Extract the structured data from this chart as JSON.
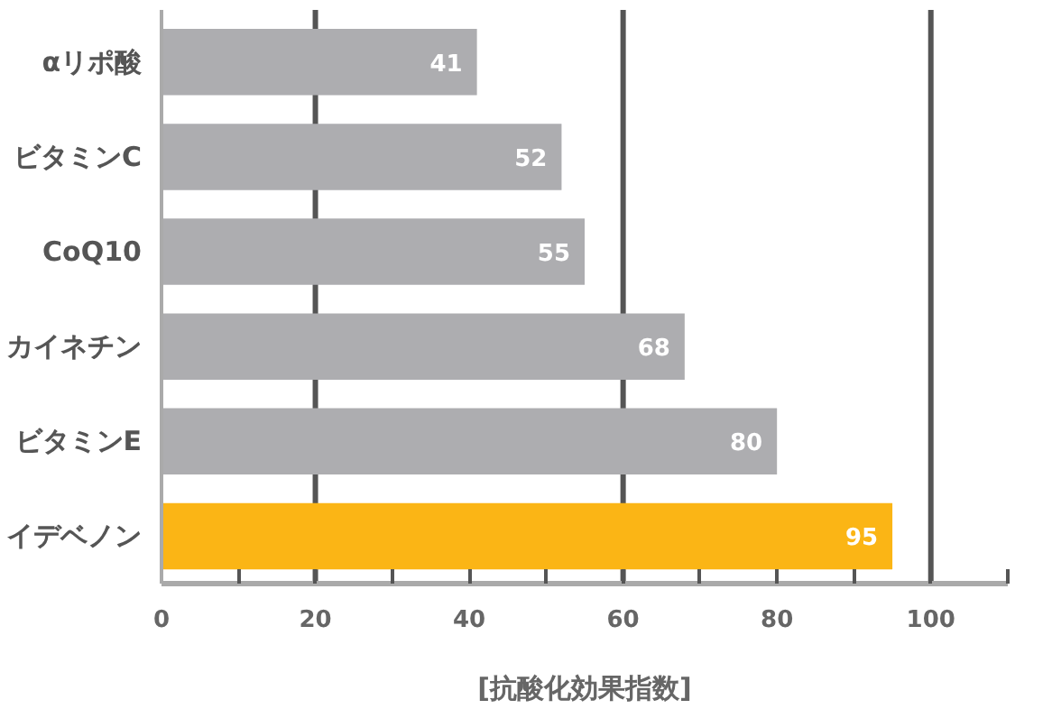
{
  "chart_data": {
    "type": "bar",
    "orientation": "horizontal",
    "xlabel": "[抗酸化効果指数]",
    "categories": [
      "αリポ酸",
      "ビタミンC",
      "CoQ10",
      "カイネチン",
      "ビタミンE",
      "イデベノン"
    ],
    "values": [
      41,
      52,
      55,
      68,
      80,
      95
    ],
    "colors": [
      "#adadb0",
      "#adadb0",
      "#adadb0",
      "#adadb0",
      "#adadb0",
      "#fbb515"
    ],
    "data_labels": true,
    "xlim": [
      0,
      110
    ],
    "xticks": [
      0,
      {
        "value": 10,
        "label": null
      },
      20,
      {
        "value": 30,
        "label": null
      },
      40,
      {
        "value": 50,
        "label": null
      },
      60,
      {
        "value": 70,
        "label": null
      },
      80,
      {
        "value": 90,
        "label": null
      },
      100,
      {
        "value": 110,
        "label": null
      }
    ],
    "ref_lines": [
      {
        "axis": "x",
        "value": 20,
        "label": null,
        "color": "#555555"
      },
      {
        "axis": "x",
        "value": 60,
        "label": null,
        "color": "#555555"
      },
      {
        "axis": "x",
        "value": 100,
        "label": null,
        "color": "#555555"
      }
    ],
    "grid": false
  }
}
